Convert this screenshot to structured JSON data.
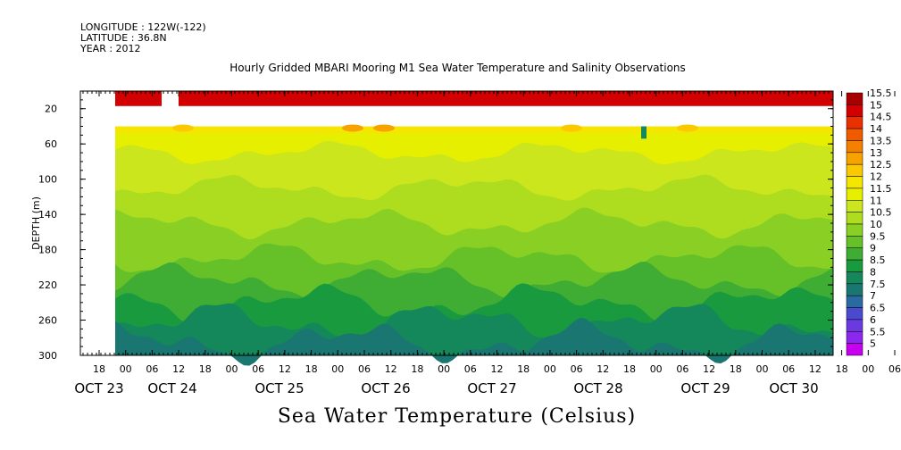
{
  "header": {
    "longitude": "LONGITUDE : 122W(-122)",
    "latitude": "LATITUDE : 36.8N",
    "year": "YEAR : 2012"
  },
  "title": "Hourly Gridded MBARI Mooring M1 Sea Water Temperature and Salinity Observations",
  "bottom_title": "Sea Water Temperature (Celsius)",
  "chart_data": {
    "type": "heatmap",
    "ylabel": "DEPTH (m)",
    "y_axis": {
      "min": 0,
      "max": 300,
      "inverted": true,
      "ticks": [
        20,
        60,
        100,
        140,
        180,
        220,
        260,
        300
      ]
    },
    "x_axis": {
      "hour_ticks": [
        "18",
        "00",
        "06",
        "12",
        "18",
        "00",
        "06",
        "12",
        "18",
        "00",
        "06",
        "12",
        "18",
        "00",
        "06",
        "12",
        "18",
        "00",
        "06",
        "12",
        "18",
        "00",
        "06",
        "12",
        "18",
        "00",
        "06",
        "12",
        "18",
        "00",
        "06",
        "12"
      ],
      "day_labels": [
        "OCT 23",
        "OCT 24",
        "OCT 25",
        "OCT 26",
        "OCT 27",
        "OCT 28",
        "OCT 29",
        "OCT 30"
      ]
    },
    "colorbar": {
      "levels": [
        "15.5",
        "15",
        "14.5",
        "14",
        "13.5",
        "13",
        "12.5",
        "12",
        "11.5",
        "11",
        "10.5",
        "10",
        "9.5",
        "9",
        "8.5",
        "8",
        "7.5",
        "7",
        "6.5",
        "6",
        "5.5",
        "5"
      ],
      "colors": [
        "#a80000",
        "#d20000",
        "#e83000",
        "#f25a00",
        "#f57f00",
        "#f8a200",
        "#fcc800",
        "#f4e600",
        "#e6ef00",
        "#cce61e",
        "#aedc1e",
        "#8ad024",
        "#66c028",
        "#3fac34",
        "#1a9a3e",
        "#14885a",
        "#1a7670",
        "#2a6aa0",
        "#4a4ad0",
        "#6a3ae0",
        "#8c28ec",
        "#c800f0"
      ]
    },
    "depth_profile": [
      {
        "depth": 12,
        "value": "15"
      },
      {
        "depth": 40,
        "value": "12"
      },
      {
        "depth": 60,
        "value": "11.5"
      },
      {
        "depth": 100,
        "value": "10.5"
      },
      {
        "depth": 140,
        "value": "10"
      },
      {
        "depth": 180,
        "value": "9"
      },
      {
        "depth": 220,
        "value": "8.5"
      },
      {
        "depth": 260,
        "value": "8"
      },
      {
        "depth": 295,
        "value": "7.5"
      }
    ]
  }
}
